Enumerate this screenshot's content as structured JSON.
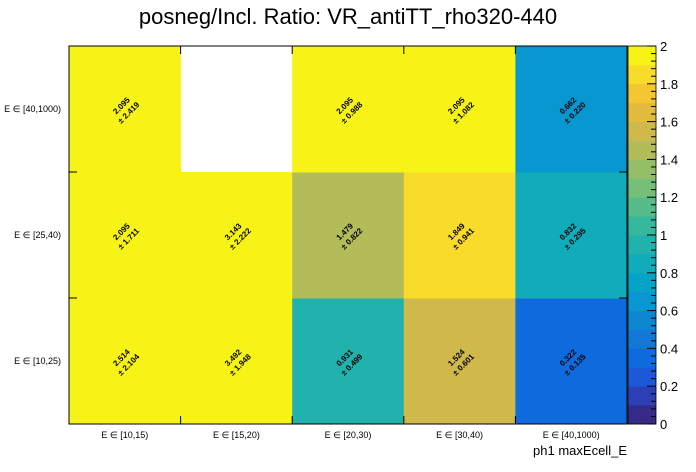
{
  "chart_data": {
    "type": "heatmap",
    "title": "posneg/Incl. Ratio: VR_antiTT_rho320-440",
    "xlabel": "ph1 maxEcell_E",
    "ylabel": "",
    "x_categories": [
      "E ∈ [10,15)",
      "E ∈ [15,20)",
      "E ∈ [20,30)",
      "E ∈ [30,40)",
      "E ∈ [40,1000)"
    ],
    "y_categories": [
      "E ∈ [10,25)",
      "E ∈ [25,40)",
      "E ∈ [40,1000)"
    ],
    "zlim": [
      0,
      2
    ],
    "z_ticks": [
      "0",
      "0.2",
      "0.4",
      "0.6",
      "0.8",
      "1",
      "1.2",
      "1.4",
      "1.6",
      "1.8",
      "2"
    ],
    "cells": [
      {
        "x": 0,
        "y": 0,
        "value": 2.514,
        "label": "2.514",
        "error": "± 2.104"
      },
      {
        "x": 1,
        "y": 0,
        "value": 3.492,
        "label": "3.492",
        "error": "± 1.948"
      },
      {
        "x": 2,
        "y": 0,
        "value": 0.931,
        "label": "0.931",
        "error": "± 0.499"
      },
      {
        "x": 3,
        "y": 0,
        "value": 1.524,
        "label": "1.524",
        "error": "± 0.601"
      },
      {
        "x": 4,
        "y": 0,
        "value": 0.322,
        "label": "0.322",
        "error": "± 0.135"
      },
      {
        "x": 0,
        "y": 1,
        "value": 2.095,
        "label": "2.095",
        "error": "± 1.711"
      },
      {
        "x": 1,
        "y": 1,
        "value": 3.143,
        "label": "3.143",
        "error": "± 2.222"
      },
      {
        "x": 2,
        "y": 1,
        "value": 1.479,
        "label": "1.479",
        "error": "± 0.822"
      },
      {
        "x": 3,
        "y": 1,
        "value": 1.849,
        "label": "1.849",
        "error": "± 0.941"
      },
      {
        "x": 4,
        "y": 1,
        "value": 0.832,
        "label": "0.832",
        "error": "± 0.295"
      },
      {
        "x": 0,
        "y": 2,
        "value": 2.095,
        "label": "2.095",
        "error": "± 2.419"
      },
      {
        "x": 2,
        "y": 2,
        "value": 2.095,
        "label": "2.095",
        "error": "± 0.988"
      },
      {
        "x": 3,
        "y": 2,
        "value": 2.095,
        "label": "2.095",
        "error": "± 1.082"
      },
      {
        "x": 4,
        "y": 2,
        "value": 0.662,
        "label": "0.662",
        "error": "± 0.220"
      }
    ],
    "grid": false,
    "legend": "colorbar-right"
  }
}
